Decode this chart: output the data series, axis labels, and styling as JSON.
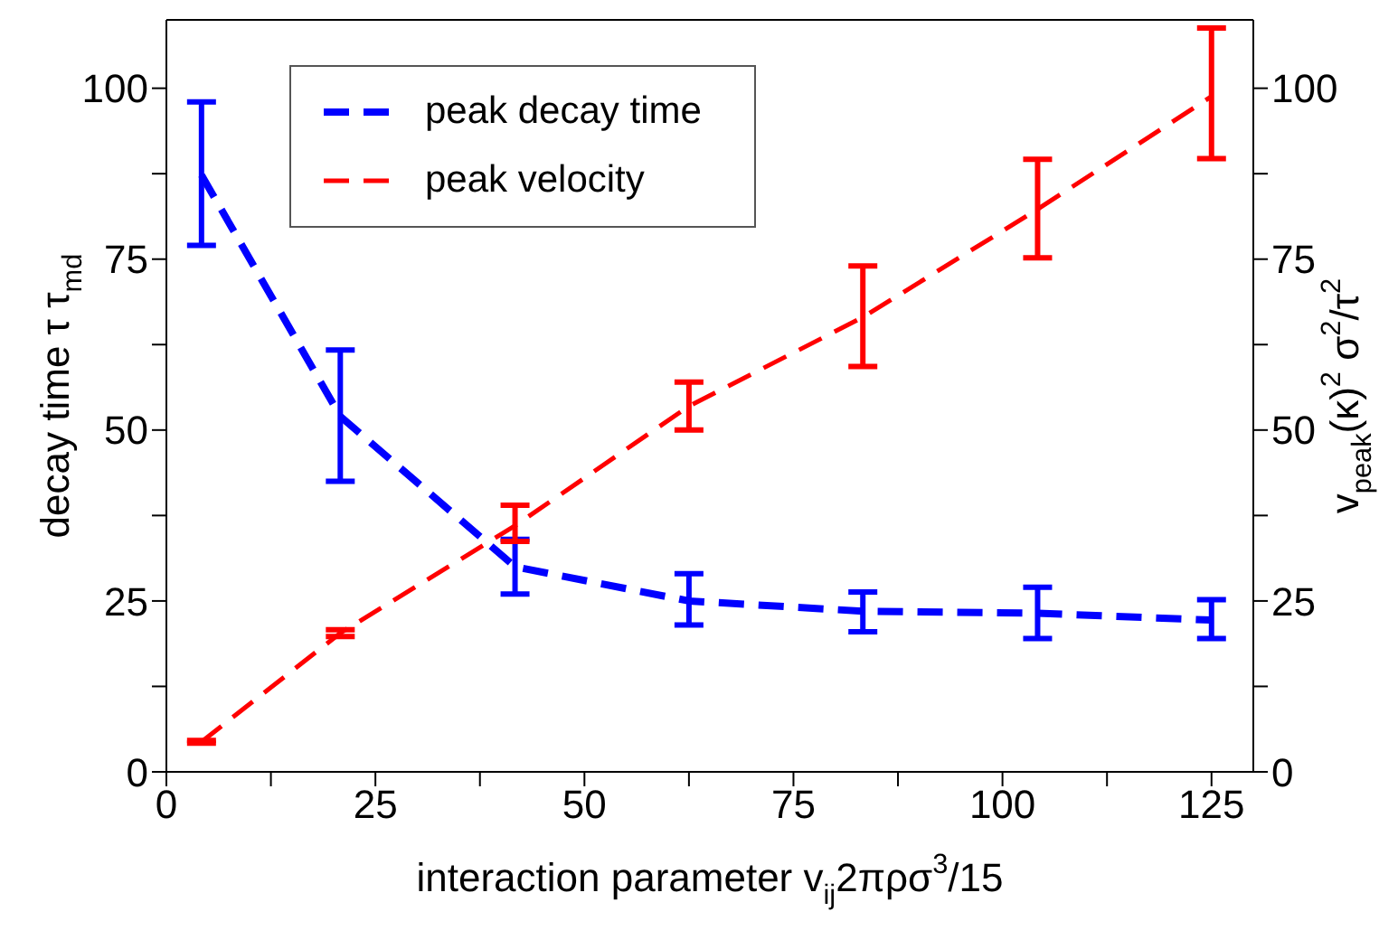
{
  "chart_data": {
    "type": "line",
    "xlabel": "interaction parameter v$_{ij}$2πρσ$^{3}$/15",
    "ylabel": "decay time τ  τ$_{md}$",
    "y2label": "v$_{peak}$(κ)$^{2}$ σ$^{2}$/τ$^{2}$",
    "x": [
      4.2,
      20.8,
      41.7,
      62.5,
      83.3,
      104.2,
      125
    ],
    "series": [
      {
        "name": "peak decay time",
        "color": "#0000ff",
        "line_style": "dashed",
        "values": [
          87.3,
          52,
          30,
          25,
          23.5,
          23.2,
          22.2
        ],
        "errors": [
          [
            77,
            98
          ],
          [
            42.5,
            61.7
          ],
          [
            26,
            34
          ],
          [
            21.5,
            29
          ],
          [
            20.5,
            26.3
          ],
          [
            19.5,
            27
          ],
          [
            19.5,
            25.2
          ]
        ]
      },
      {
        "name": "peak velocity",
        "color": "#ff0000",
        "line_style": "dashed",
        "axis": "y2",
        "values": [
          4.4,
          20.3,
          36,
          53.5,
          66.5,
          82.3,
          98.8
        ],
        "errors": [
          [
            4.2,
            4.6
          ],
          [
            19.8,
            20.8
          ],
          [
            33.7,
            39
          ],
          [
            50,
            57
          ],
          [
            59.3,
            74
          ],
          [
            75.2,
            89.6
          ],
          [
            89.7,
            108.8
          ]
        ]
      }
    ],
    "xlim": [
      0,
      130
    ],
    "xticks": [
      0,
      {
        "value": 12.5,
        "label": null
      },
      25,
      {
        "value": 37.5,
        "label": null
      },
      50,
      {
        "value": 62.5,
        "label": null
      },
      75,
      {
        "value": 87.5,
        "label": null
      },
      100,
      {
        "value": 112.5,
        "label": null
      },
      125
    ],
    "ylim": [
      0,
      110
    ],
    "yticks": [
      0,
      {
        "value": 12.5,
        "label": null
      },
      25,
      {
        "value": 37.5,
        "label": null
      },
      50,
      {
        "value": 62.5,
        "label": null
      },
      75,
      {
        "value": 87.5,
        "label": null
      },
      100
    ],
    "y2lim": [
      0,
      110
    ],
    "y2ticks": [
      0,
      {
        "value": 12.5,
        "label": null
      },
      25,
      {
        "value": 37.5,
        "label": null
      },
      50,
      {
        "value": 62.5,
        "label": null
      },
      75,
      {
        "value": 87.5,
        "label": null
      },
      100
    ],
    "marker": "none",
    "grid": false,
    "legend": "top left"
  }
}
